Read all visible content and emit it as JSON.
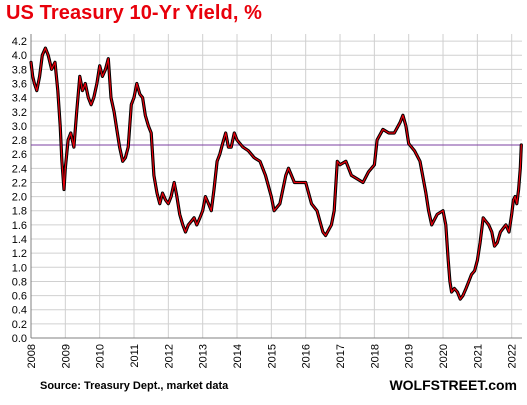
{
  "page": {
    "title": "US Treasury 10-Yr Yield, %",
    "source": "Source: Treasury Dept., market data",
    "brand": "WOLFSTREET.com"
  },
  "colors": {
    "title": "#e8000b",
    "series_outer": "#000000",
    "series_inner": "#e8000b",
    "reference_line": "#7b3fa0",
    "grid": "#d0d0d0"
  },
  "chart_data": {
    "type": "line",
    "title": "US Treasury 10-Yr Yield, %",
    "xlabel": "",
    "ylabel": "",
    "x_ticks": [
      "2008",
      "2009",
      "2010",
      "2011",
      "2012",
      "2013",
      "2014",
      "2015",
      "2016",
      "2017",
      "2018",
      "2019",
      "2020",
      "2021",
      "2022"
    ],
    "y_ticks": [
      "0.0",
      "0.2",
      "0.4",
      "0.6",
      "0.8",
      "1.0",
      "1.2",
      "1.4",
      "1.6",
      "1.8",
      "2.0",
      "2.2",
      "2.4",
      "2.6",
      "2.8",
      "3.0",
      "3.2",
      "3.4",
      "3.6",
      "3.8",
      "4.0",
      "4.2"
    ],
    "xlim": [
      2008,
      2022.3
    ],
    "ylim": [
      0,
      4.3
    ],
    "grid": true,
    "reference_line": {
      "y": 2.73
    },
    "series": [
      {
        "x": [
          2008.0,
          2008.05,
          2008.1,
          2008.17,
          2008.25,
          2008.33,
          2008.42,
          2008.5,
          2008.6,
          2008.7,
          2008.78,
          2008.85,
          2008.9,
          2008.96,
          2009.0,
          2009.08,
          2009.16,
          2009.25,
          2009.33,
          2009.42,
          2009.5,
          2009.58,
          2009.67,
          2009.75,
          2009.83,
          2009.92,
          2010.0,
          2010.08,
          2010.17,
          2010.25,
          2010.33,
          2010.42,
          2010.5,
          2010.58,
          2010.67,
          2010.75,
          2010.83,
          2010.92,
          2011.0,
          2011.08,
          2011.17,
          2011.25,
          2011.33,
          2011.42,
          2011.5,
          2011.58,
          2011.67,
          2011.75,
          2011.83,
          2011.92,
          2012.0,
          2012.08,
          2012.17,
          2012.25,
          2012.33,
          2012.42,
          2012.5,
          2012.58,
          2012.67,
          2012.75,
          2012.83,
          2012.92,
          2013.0,
          2013.08,
          2013.17,
          2013.25,
          2013.33,
          2013.42,
          2013.5,
          2013.58,
          2013.67,
          2013.75,
          2013.83,
          2013.92,
          2014.0,
          2014.17,
          2014.33,
          2014.5,
          2014.67,
          2014.83,
          2015.0,
          2015.08,
          2015.25,
          2015.42,
          2015.5,
          2015.67,
          2015.83,
          2016.0,
          2016.17,
          2016.33,
          2016.5,
          2016.58,
          2016.75,
          2016.83,
          2016.92,
          2017.0,
          2017.17,
          2017.33,
          2017.5,
          2017.67,
          2017.83,
          2018.0,
          2018.08,
          2018.25,
          2018.42,
          2018.58,
          2018.75,
          2018.83,
          2018.92,
          2019.0,
          2019.17,
          2019.33,
          2019.5,
          2019.58,
          2019.67,
          2019.83,
          2020.0,
          2020.08,
          2020.15,
          2020.2,
          2020.25,
          2020.33,
          2020.42,
          2020.5,
          2020.58,
          2020.67,
          2020.75,
          2020.83,
          2020.92,
          2021.0,
          2021.08,
          2021.17,
          2021.25,
          2021.33,
          2021.42,
          2021.5,
          2021.58,
          2021.67,
          2021.75,
          2021.83,
          2021.92,
          2022.0,
          2022.05,
          2022.1,
          2022.15,
          2022.2,
          2022.25,
          2022.28
        ],
        "values": [
          3.9,
          3.7,
          3.6,
          3.5,
          3.7,
          4.0,
          4.1,
          4.0,
          3.8,
          3.9,
          3.5,
          3.0,
          2.5,
          2.1,
          2.4,
          2.8,
          2.9,
          2.7,
          3.2,
          3.7,
          3.5,
          3.6,
          3.4,
          3.3,
          3.4,
          3.6,
          3.85,
          3.7,
          3.8,
          3.95,
          3.4,
          3.2,
          2.95,
          2.7,
          2.5,
          2.55,
          2.7,
          3.3,
          3.4,
          3.6,
          3.45,
          3.4,
          3.15,
          3.0,
          2.9,
          2.3,
          2.05,
          1.9,
          2.05,
          1.95,
          1.9,
          2.0,
          2.2,
          2.0,
          1.75,
          1.6,
          1.5,
          1.6,
          1.65,
          1.7,
          1.6,
          1.7,
          1.8,
          2.0,
          1.9,
          1.8,
          2.1,
          2.5,
          2.6,
          2.75,
          2.9,
          2.7,
          2.7,
          2.9,
          2.8,
          2.7,
          2.65,
          2.55,
          2.5,
          2.3,
          2.0,
          1.8,
          1.9,
          2.3,
          2.4,
          2.2,
          2.2,
          2.2,
          1.9,
          1.8,
          1.5,
          1.45,
          1.6,
          1.8,
          2.5,
          2.45,
          2.5,
          2.3,
          2.25,
          2.2,
          2.35,
          2.45,
          2.8,
          2.95,
          2.9,
          2.9,
          3.05,
          3.15,
          3.0,
          2.75,
          2.65,
          2.5,
          2.05,
          1.8,
          1.6,
          1.75,
          1.8,
          1.6,
          1.1,
          0.8,
          0.65,
          0.7,
          0.65,
          0.55,
          0.6,
          0.7,
          0.8,
          0.9,
          0.95,
          1.1,
          1.35,
          1.7,
          1.65,
          1.6,
          1.5,
          1.3,
          1.35,
          1.5,
          1.55,
          1.6,
          1.5,
          1.75,
          1.95,
          2.0,
          1.9,
          2.1,
          2.4,
          2.73
        ]
      }
    ]
  }
}
